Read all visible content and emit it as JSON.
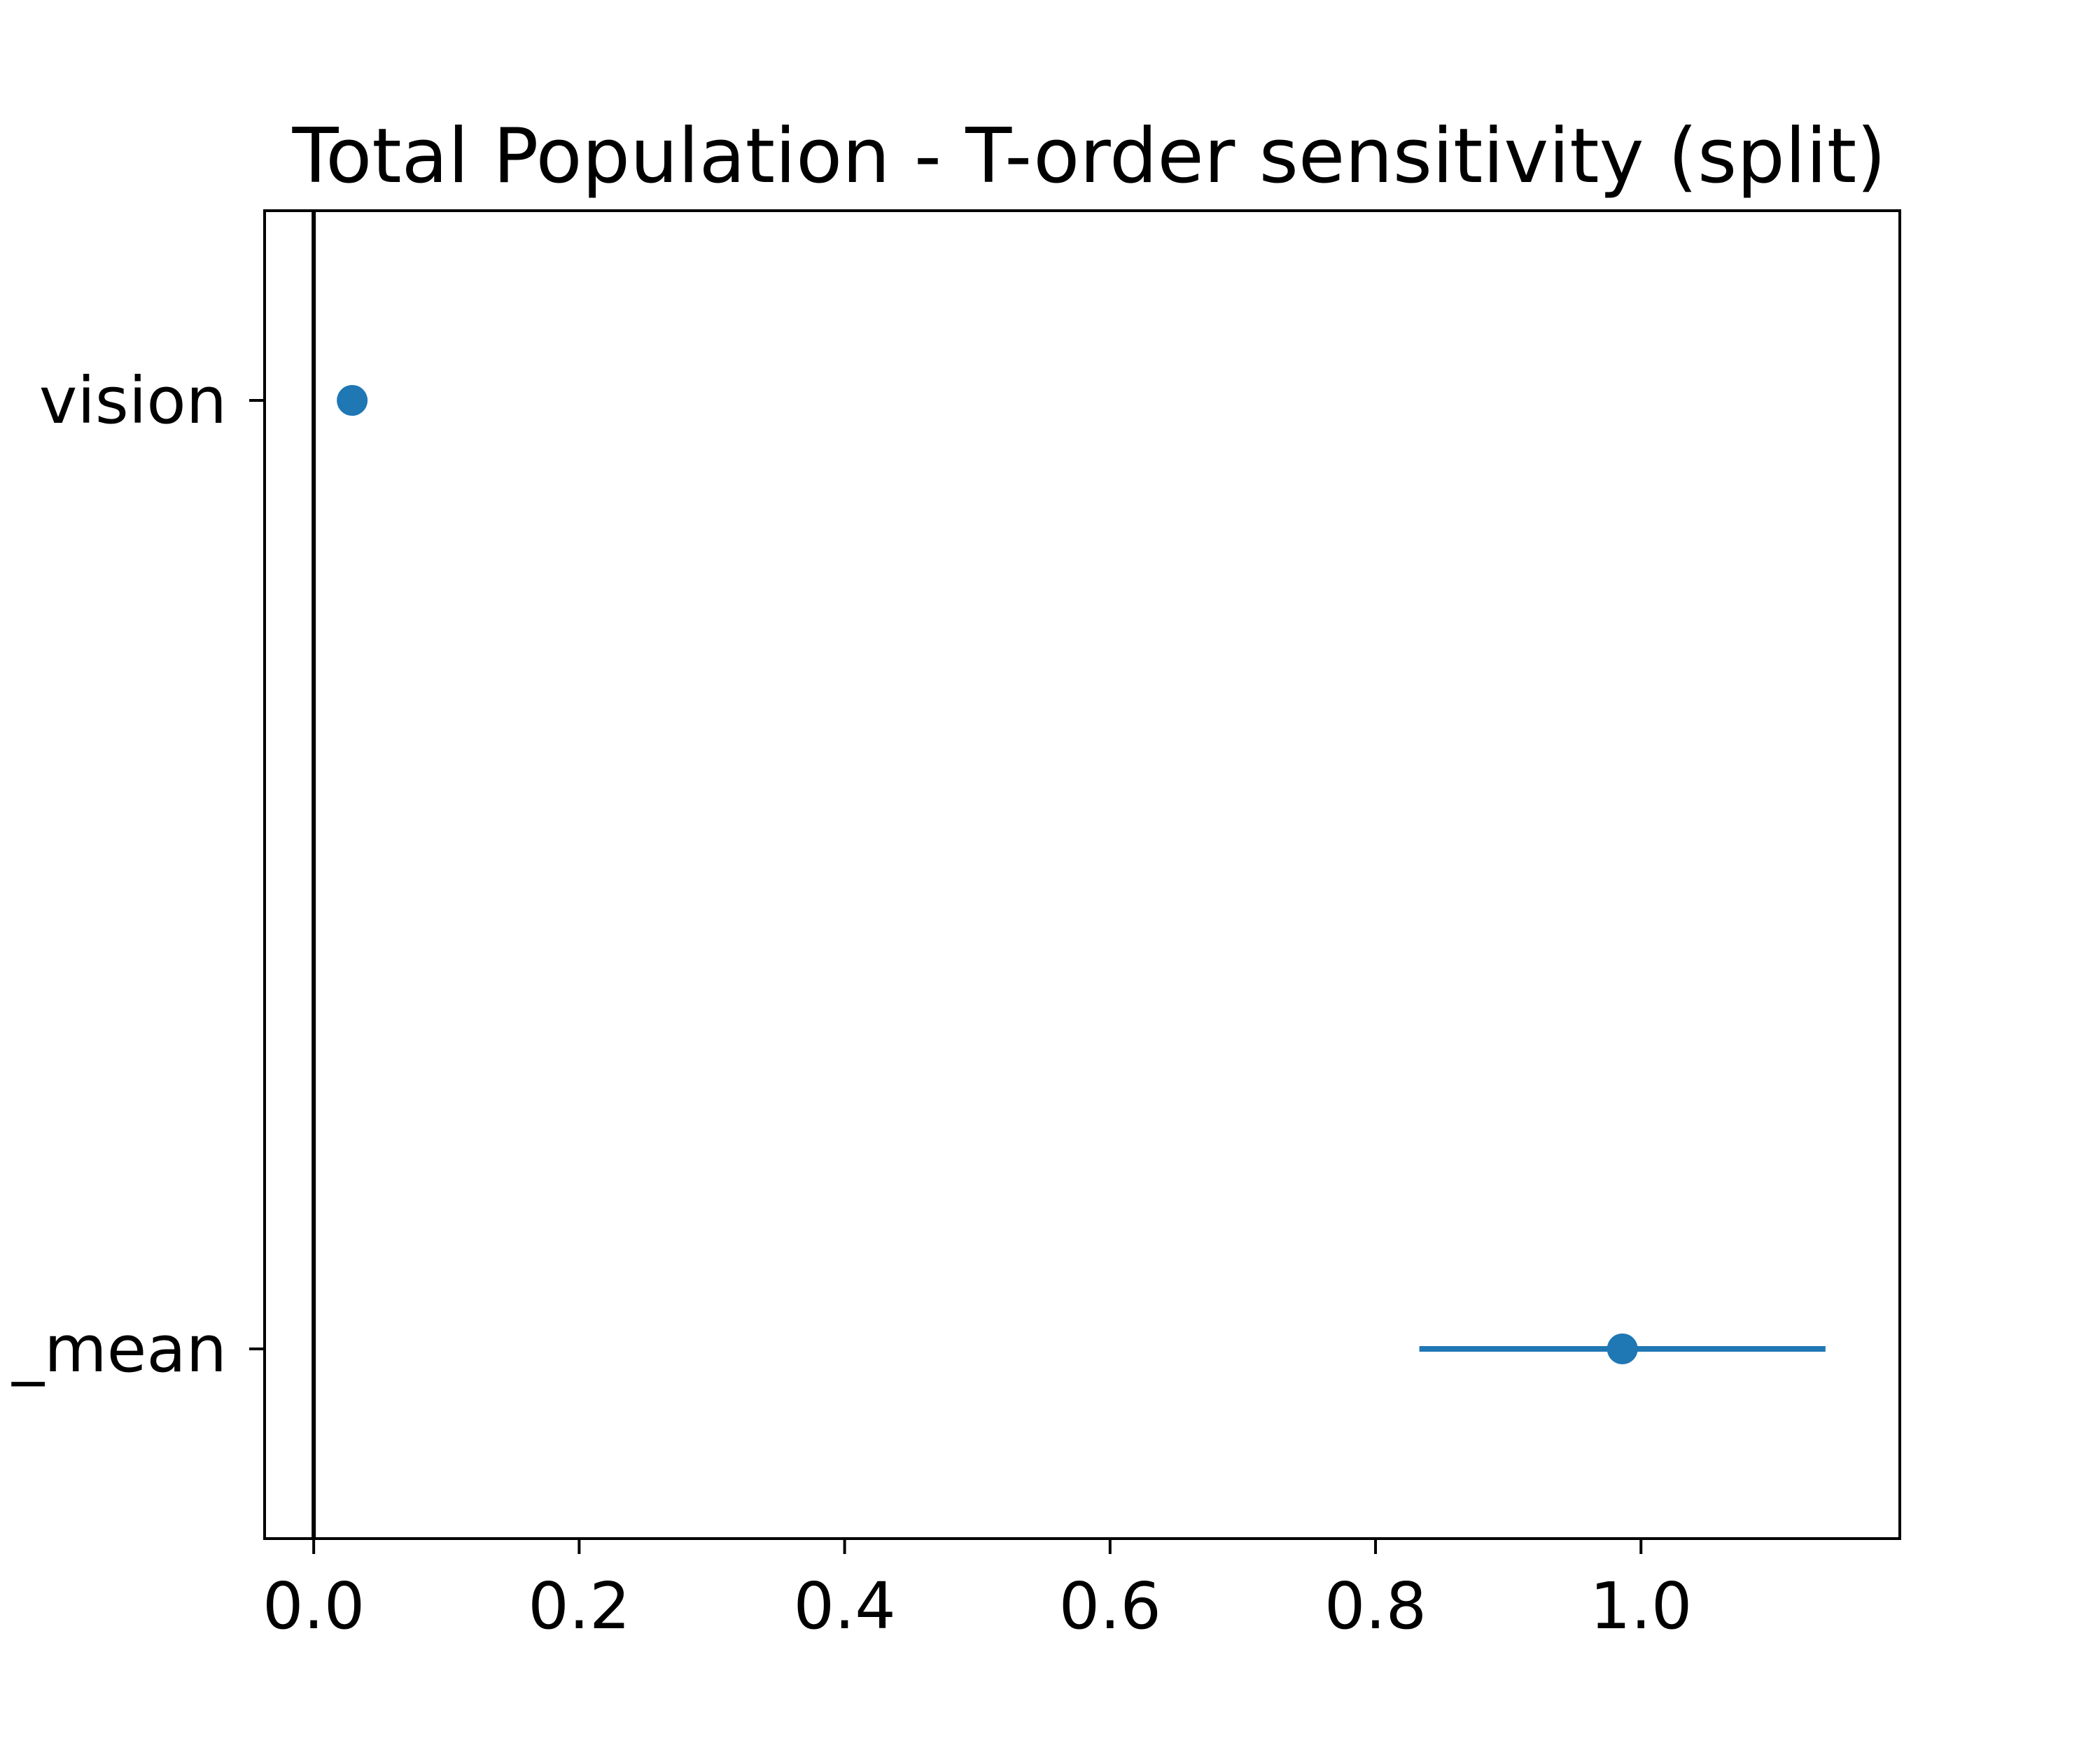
{
  "chart_data": {
    "type": "scatter",
    "title": "Total Population - T-order sensitivity (split)",
    "xlabel": "",
    "ylabel": "",
    "xlim": [
      -0.037,
      1.195
    ],
    "xticks": [
      "0.0",
      "0.2",
      "0.4",
      "0.6",
      "0.8",
      "1.0"
    ],
    "xtick_values": [
      0.0,
      0.2,
      0.4,
      0.6,
      0.8,
      1.0
    ],
    "categories": [
      "vision",
      "_mean"
    ],
    "points": [
      {
        "label": "vision",
        "value": 0.029,
        "err_low": 0.029,
        "err_high": 0.029
      },
      {
        "label": "_mean",
        "value": 0.986,
        "err_low": 0.833,
        "err_high": 1.139
      }
    ],
    "reference_line_x": 0.0,
    "grid": false,
    "legend": "none"
  },
  "colors": {
    "series": "#1f77b4",
    "axes": "#000000",
    "background": "#ffffff"
  }
}
